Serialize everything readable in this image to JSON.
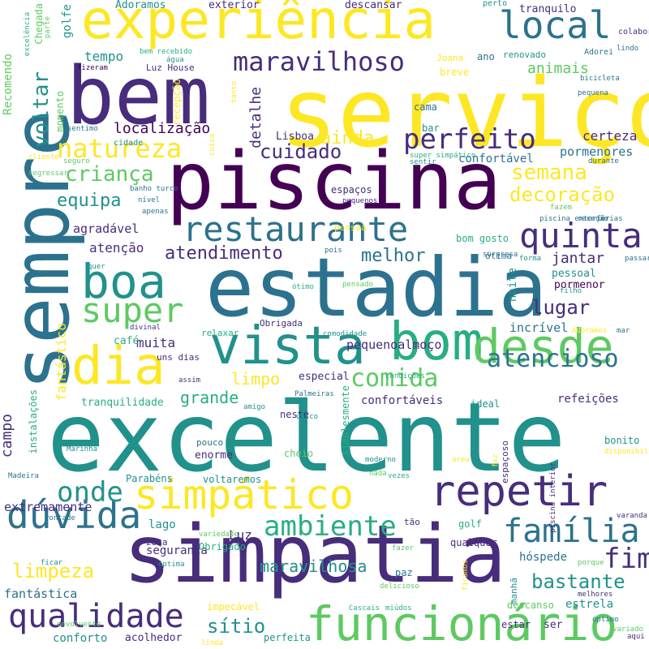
{
  "palette": {
    "dark_purple": "#440154",
    "indigo": "#472d7b",
    "blue": "#3b528b",
    "slate": "#2c728e",
    "teal": "#21918c",
    "green": "#28ae80",
    "lime": "#5ec962",
    "yellow_green": "#addc30",
    "yellow": "#fde725"
  },
  "words": [
    "serviço",
    "excelente",
    "piscina",
    "estadia",
    "simpatia",
    "sempre",
    "bem",
    "experiência",
    "bom",
    "vista",
    "desde",
    "dia",
    "boa",
    "funcionário",
    "repetir",
    "simpático",
    "local",
    "restaurante",
    "quinta",
    "super",
    "maravilhoso",
    "perfeito",
    "natureza",
    "qualidade",
    "família",
    "dúvida",
    "onde",
    "ambiente",
    "comida",
    "atencioso",
    "semana",
    "criança",
    "decoração",
    "voltar",
    "animais",
    "cuidado",
    "atendimento",
    "limpeza",
    "bastante",
    "fim",
    "sítio",
    "equipa",
    "melhor",
    "ainda",
    "lugar",
    "localização",
    "jantar",
    "maravilhosa",
    "limpo",
    "grande",
    "certeza",
    "pormenores",
    "agradável",
    "atenção",
    "muita",
    "fantástico",
    "detalhe",
    "incrível",
    "pequenoalmoço",
    "campo",
    "tempo",
    "confortáveis",
    "refeições",
    "golfe",
    "extremamente",
    "segurança",
    "Luz",
    "noite",
    "pessoal",
    "pormenor",
    "confortável",
    "estrela",
    "fantástica",
    "conforto",
    "acolhedor",
    "especial",
    "tranquilidade",
    "Adoramos",
    "exterior",
    "descansar",
    "tranquilo",
    "Recomendo",
    "Luz House",
    "breve",
    "renovado",
    "ano",
    "Joana",
    "cama",
    "bar",
    "Lisboa",
    "café",
    "relaxar",
    "Obrigada",
    "uns dias",
    "neste",
    "ideal",
    "simplesmente",
    "pouco",
    "enorme",
    "cheio",
    "voltaremos",
    "Parabéns",
    "lago",
    "zona",
    "Obrigado",
    "paz",
    "tão",
    "golf",
    "qualquer",
    "hóspede",
    "manhã",
    "descanso",
    "estar",
    "ser",
    "perfeita",
    "impecável",
    "ótima",
    "bom gosto",
    "espaços",
    "espaçoso",
    "bonito",
    "pessoa",
    "instalações",
    "momento",
    "recepção",
    "Chegada",
    "perto",
    "colaboradores",
    "lindo",
    "Adorei",
    "bicicleta",
    "pequena",
    "durante",
    "bem recebido",
    "água",
    "fizeram",
    "sentimo",
    "cliente",
    "seguro",
    "cidade",
    "banho turco",
    "nível",
    "apenas",
    "regressar",
    "tanto",
    "excelência",
    "parte",
    "super simpático",
    "sentir",
    "pequenos",
    "coisa",
    "piscina exterior",
    "receção",
    "férias",
    "fazem",
    "surpresa",
    "forma",
    "passar",
    "pois",
    "pensado",
    "quer",
    "ótimo",
    "filho",
    "divinal",
    "comodidade",
    "Adorámos",
    "mar",
    "assim",
    "condições",
    "Palmeiras",
    "único",
    "amigo",
    "Marinha",
    "Madeira",
    "vontade",
    "moderno",
    "área",
    "nada",
    "vezes",
    "piscina interior",
    "disponibilidade",
    "varanda",
    "porque",
    "ficar",
    "envolvente",
    "variedade",
    "óptima",
    "fazer",
    "ficamos",
    "delicioso",
    "Cascais",
    "miúdos",
    "melhores",
    "óptimo",
    "variado",
    "aqui",
    "faz",
    "linda",
    "bem decorado"
  ]
}
